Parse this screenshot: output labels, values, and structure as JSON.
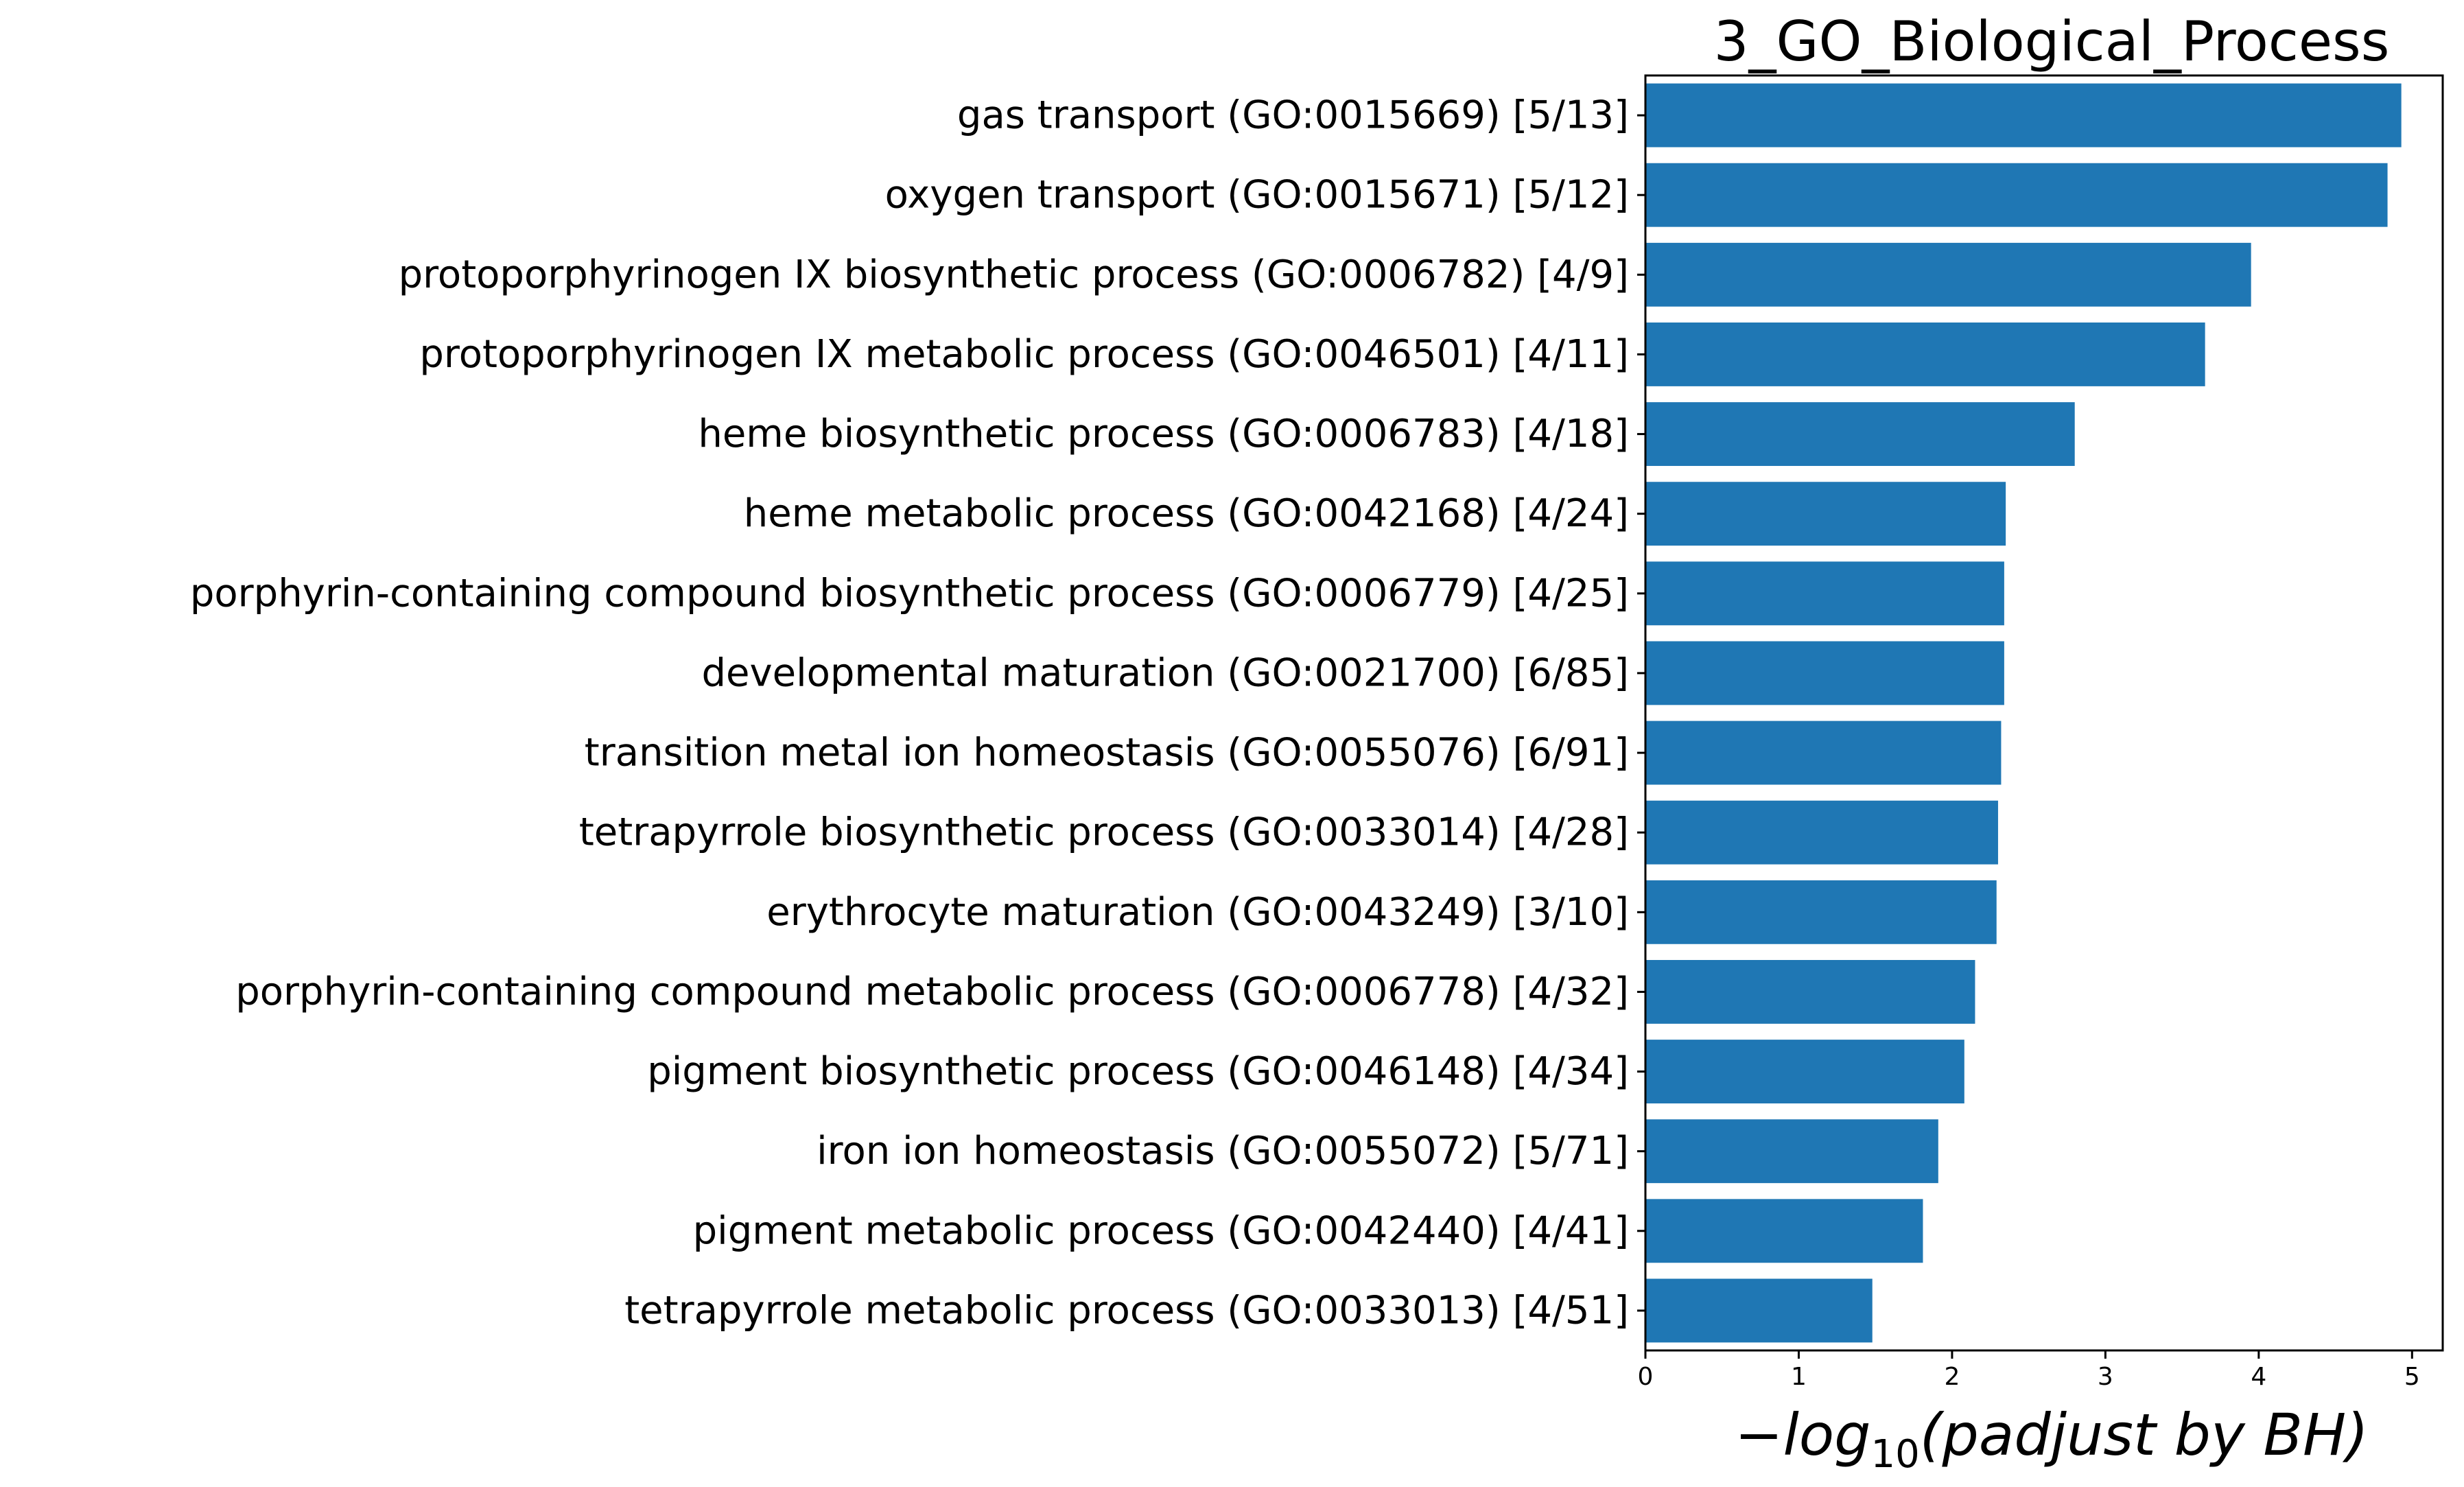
{
  "chart_data": {
    "type": "bar",
    "orientation": "horizontal",
    "title": "3_GO_Biological_Process",
    "xlabel_parts": [
      "−log",
      "10",
      "(padjust by BH)"
    ],
    "ylabel": "",
    "xlim": [
      0,
      5.2
    ],
    "xticks": [
      "0",
      "1",
      "2",
      "3",
      "4",
      "5"
    ],
    "grid": false,
    "bar_color": "#1f77b4",
    "categories": [
      "gas transport (GO:0015669) [5/13]",
      "oxygen transport (GO:0015671) [5/12]",
      "protoporphyrinogen IX biosynthetic process (GO:0006782) [4/9]",
      "protoporphyrinogen IX metabolic process (GO:0046501) [4/11]",
      "heme biosynthetic process (GO:0006783) [4/18]",
      "heme metabolic process (GO:0042168) [4/24]",
      "porphyrin-containing compound biosynthetic process (GO:0006779) [4/25]",
      "developmental maturation (GO:0021700) [6/85]",
      "transition metal ion homeostasis (GO:0055076) [6/91]",
      "tetrapyrrole biosynthetic process (GO:0033014) [4/28]",
      "erythrocyte maturation (GO:0043249) [3/10]",
      "porphyrin-containing compound metabolic process (GO:0006778) [4/32]",
      "pigment biosynthetic process (GO:0046148) [4/34]",
      "iron ion homeostasis (GO:0055072) [5/71]",
      "pigment metabolic process (GO:0042440) [4/41]",
      "tetrapyrrole metabolic process (GO:0033013) [4/51]"
    ],
    "values": [
      4.93,
      4.84,
      3.95,
      3.65,
      2.8,
      2.35,
      2.34,
      2.34,
      2.32,
      2.3,
      2.29,
      2.15,
      2.08,
      1.91,
      1.81,
      1.48
    ]
  }
}
